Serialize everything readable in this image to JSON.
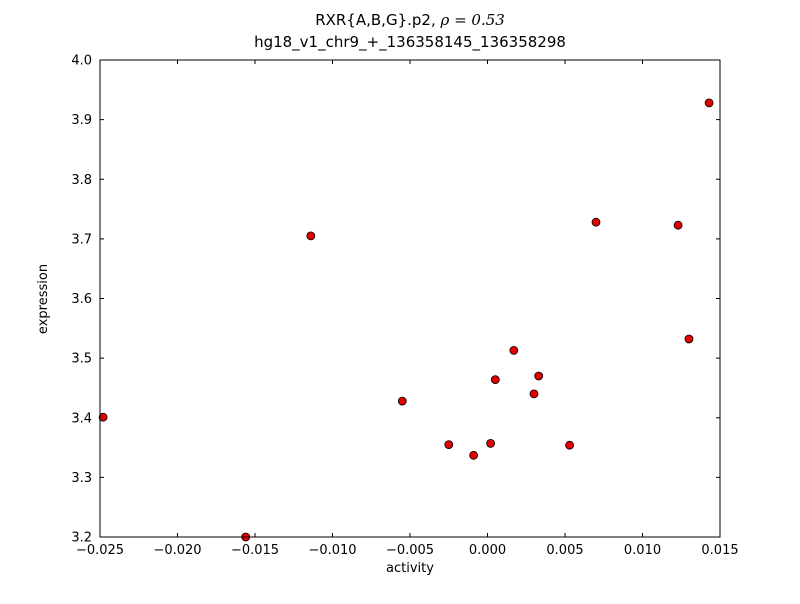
{
  "chart_data": {
    "type": "scatter",
    "title_line1_main": "RXR{A,B,G}.p2, ",
    "title_line1_math": "ρ = 0.53",
    "title_line2": "hg18_v1_chr9_+_136358145_136358298",
    "xlabel": "activity",
    "ylabel": "expression",
    "xlim": [
      -0.025,
      0.015
    ],
    "ylim": [
      3.2,
      4.0
    ],
    "x_ticks": [
      -0.025,
      -0.02,
      -0.015,
      -0.01,
      -0.005,
      0.0,
      0.005,
      0.01,
      0.015
    ],
    "x_tick_labels": [
      "−0.025",
      "−0.020",
      "−0.015",
      "−0.010",
      "−0.005",
      "0.000",
      "0.005",
      "0.010",
      "0.015"
    ],
    "y_ticks": [
      3.2,
      3.3,
      3.4,
      3.5,
      3.6,
      3.7,
      3.8,
      3.9,
      4.0
    ],
    "y_tick_labels": [
      "3.2",
      "3.3",
      "3.4",
      "3.5",
      "3.6",
      "3.7",
      "3.8",
      "3.9",
      "4.0"
    ],
    "grid": false,
    "legend": "none",
    "marker": {
      "shape": "circle",
      "fill": "#e00000",
      "edge": "#000000",
      "radius": 4
    },
    "points": {
      "x": [
        -0.0248,
        -0.0156,
        -0.0114,
        -0.0055,
        -0.0025,
        -0.0009,
        0.0002,
        0.0005,
        0.0017,
        0.003,
        0.0033,
        0.0053,
        0.007,
        0.0123,
        0.013,
        0.0143
      ],
      "y": [
        3.401,
        3.2,
        3.705,
        3.428,
        3.355,
        3.337,
        3.357,
        3.464,
        3.513,
        3.44,
        3.47,
        3.354,
        3.728,
        3.723,
        3.532,
        3.928
      ]
    }
  }
}
